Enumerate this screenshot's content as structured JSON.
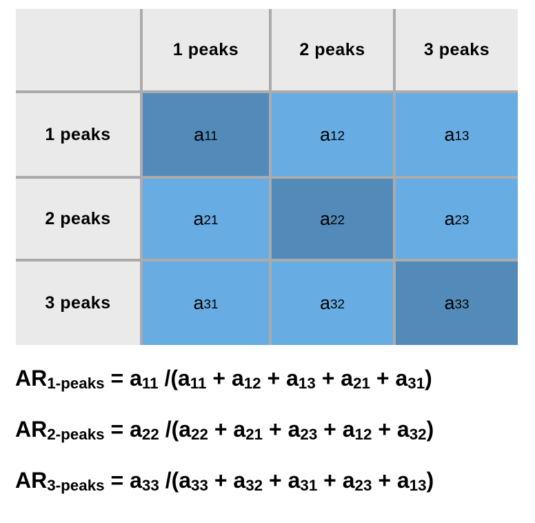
{
  "colors": {
    "page_background": "#ffffff",
    "header_cell_background": "#eaeaea",
    "grid_line": "#ababab",
    "diagonal_cell_blue": "#528bba",
    "off_diagonal_cell_blue": "#67ace3",
    "text": "#000000"
  },
  "matrix": {
    "corner_label": "",
    "col_headers": [
      "1 peaks",
      "2 peaks",
      "3 peaks"
    ],
    "rows": [
      {
        "label": "1 peaks",
        "cells": [
          {
            "base": "a",
            "sub": "11",
            "diagonal": true
          },
          {
            "base": "a",
            "sub": "12",
            "diagonal": false
          },
          {
            "base": "a",
            "sub": "13",
            "diagonal": false
          }
        ]
      },
      {
        "label": "2 peaks",
        "cells": [
          {
            "base": "a",
            "sub": "21",
            "diagonal": false
          },
          {
            "base": "a",
            "sub": "22",
            "diagonal": true
          },
          {
            "base": "a",
            "sub": "23",
            "diagonal": false
          }
        ]
      },
      {
        "label": "3 peaks",
        "cells": [
          {
            "base": "a",
            "sub": "31",
            "diagonal": false
          },
          {
            "base": "a",
            "sub": "32",
            "diagonal": false
          },
          {
            "base": "a",
            "sub": "33",
            "diagonal": true
          }
        ]
      }
    ]
  },
  "formulas": [
    {
      "name": "AR 1-peaks",
      "plain_text": "AR1-peaks = a11 /(a11 + a12 + a13 + a21 + a31)",
      "tokens": [
        {
          "t": "AR",
          "s": "1-peaks"
        },
        {
          "t": " = "
        },
        {
          "t": "a",
          "s": "11"
        },
        {
          "t": " /("
        },
        {
          "t": "a",
          "s": "11"
        },
        {
          "t": " + "
        },
        {
          "t": "a",
          "s": "12"
        },
        {
          "t": " + "
        },
        {
          "t": "a",
          "s": "13"
        },
        {
          "t": " + "
        },
        {
          "t": "a",
          "s": "21"
        },
        {
          "t": " + "
        },
        {
          "t": "a",
          "s": "31"
        },
        {
          "t": ")"
        }
      ]
    },
    {
      "name": "AR 2-peaks",
      "plain_text": "AR2-peaks = a22 /(a22 + a21 + a23 + a12 + a32)",
      "tokens": [
        {
          "t": "AR",
          "s": "2-peaks"
        },
        {
          "t": " = "
        },
        {
          "t": "a",
          "s": "22"
        },
        {
          "t": " /("
        },
        {
          "t": "a",
          "s": "22"
        },
        {
          "t": " + "
        },
        {
          "t": "a",
          "s": "21"
        },
        {
          "t": " + "
        },
        {
          "t": "a",
          "s": "23"
        },
        {
          "t": " + "
        },
        {
          "t": "a",
          "s": "12"
        },
        {
          "t": " + "
        },
        {
          "t": "a",
          "s": "32"
        },
        {
          "t": ")"
        }
      ]
    },
    {
      "name": "AR 3-peaks",
      "plain_text": "AR3-peaks = a33 /(a33 + a32 + a31 + a23 + a13)",
      "tokens": [
        {
          "t": "AR",
          "s": "3-peaks"
        },
        {
          "t": " = "
        },
        {
          "t": "a",
          "s": "33"
        },
        {
          "t": " /("
        },
        {
          "t": "a",
          "s": "33"
        },
        {
          "t": " + "
        },
        {
          "t": "a",
          "s": "32"
        },
        {
          "t": " + "
        },
        {
          "t": "a",
          "s": "31"
        },
        {
          "t": " + "
        },
        {
          "t": "a",
          "s": "23"
        },
        {
          "t": " + "
        },
        {
          "t": "a",
          "s": "13"
        },
        {
          "t": ")"
        }
      ]
    }
  ]
}
